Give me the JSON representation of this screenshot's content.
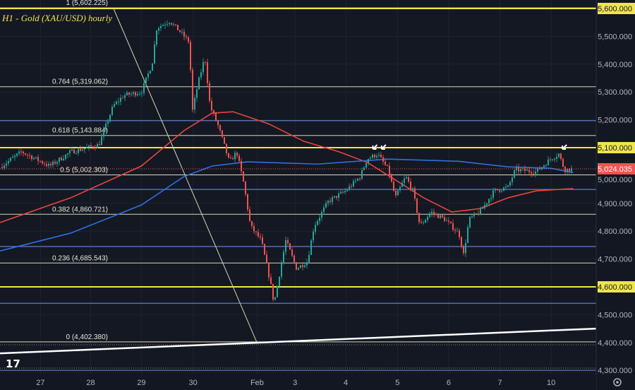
{
  "chart_data": {
    "type": "candlestick",
    "title": "H1 - Gold (XAU/USD) hourly",
    "ylim": [
      4280,
      5640
    ],
    "y_ticks": [
      5600,
      5500,
      5400,
      5300,
      5200,
      5100,
      5000,
      4900,
      4800,
      4700,
      4600,
      4500,
      4400,
      4300
    ],
    "y_tick_labels": [
      "5,600.000",
      "5,500.000",
      "5,400.000",
      "5,300.000",
      "5,200.000",
      "5,100.000",
      "5,000.000",
      "4,900.000",
      "4,800.000",
      "4,700.000",
      "4,600.000",
      "4,500.000",
      "4,400.000",
      "4,300.000"
    ],
    "x_ticks": [
      {
        "label": "27",
        "session_time": 0
      },
      {
        "label": "28",
        "session_time": 0.98
      },
      {
        "label": "29",
        "session_time": 1.97
      },
      {
        "label": "30",
        "session_time": 2.98
      },
      {
        "label": "Feb",
        "session_time": 4.23
      },
      {
        "label": "3",
        "session_time": 4.97
      },
      {
        "label": "4",
        "session_time": 5.96
      },
      {
        "label": "5",
        "session_time": 6.97
      },
      {
        "label": "6",
        "session_time": 7.97
      },
      {
        "label": "7",
        "session_time": 8.97
      },
      {
        "label": "10",
        "session_time": 9.97
      }
    ],
    "xlim": [
      -0.79,
      10.85
    ],
    "current_price": {
      "value": 5024.035,
      "label": "5,024.035",
      "color": "#f05350"
    },
    "key_levels": [
      {
        "value": 5600,
        "label": "5,600.000"
      },
      {
        "value": 5100,
        "label": "5,100.000"
      },
      {
        "value": 4600,
        "label": "4,600.000"
      }
    ],
    "key_level_color": "#f0e54a",
    "fibonacci": [
      {
        "ratio": "1",
        "value": 5602.225,
        "label": "1 (5,602.225)"
      },
      {
        "ratio": "0.764",
        "value": 5319.062,
        "label": "0.764 (5,319.062)"
      },
      {
        "ratio": "0.618",
        "value": 5143.884,
        "label": "0.618 (5,143.884)"
      },
      {
        "ratio": "0.5",
        "value": 5002.303,
        "label": "0.5 (5,002.303)"
      },
      {
        "ratio": "0.382",
        "value": 4860.721,
        "label": "0.382 (4,860.721)"
      },
      {
        "ratio": "0.236",
        "value": 4685.543,
        "label": "0.236 (4,685.543)"
      },
      {
        "ratio": "0",
        "value": 4402.38,
        "label": "0 (4,402.380)"
      }
    ],
    "fib_color": "#d8d6b0",
    "blue_levels": [
      5197,
      4950,
      4745,
      4541,
      4300
    ],
    "blue_level_color": "#5b7fc4",
    "price_path": [
      [
        -0.79,
        5030
      ],
      [
        -0.37,
        5085
      ],
      [
        0.18,
        5034
      ],
      [
        0.59,
        5085
      ],
      [
        1.14,
        5110
      ],
      [
        1.42,
        5250
      ],
      [
        1.63,
        5288
      ],
      [
        1.97,
        5300
      ],
      [
        2.18,
        5402
      ],
      [
        2.27,
        5530
      ],
      [
        2.52,
        5555
      ],
      [
        2.73,
        5516
      ],
      [
        2.91,
        5478
      ],
      [
        2.96,
        5224
      ],
      [
        3.07,
        5326
      ],
      [
        3.21,
        5427
      ],
      [
        3.31,
        5250
      ],
      [
        3.48,
        5173
      ],
      [
        3.69,
        5047
      ],
      [
        3.83,
        5085
      ],
      [
        3.97,
        4970
      ],
      [
        4.1,
        4818
      ],
      [
        4.31,
        4767
      ],
      [
        4.49,
        4615
      ],
      [
        4.56,
        4539
      ],
      [
        4.66,
        4640
      ],
      [
        4.79,
        4767
      ],
      [
        5.0,
        4666
      ],
      [
        5.21,
        4691
      ],
      [
        5.34,
        4818
      ],
      [
        5.62,
        4907
      ],
      [
        5.96,
        4945
      ],
      [
        6.24,
        4996
      ],
      [
        6.38,
        5060
      ],
      [
        6.58,
        5077
      ],
      [
        6.79,
        5021
      ],
      [
        6.93,
        4920
      ],
      [
        7.13,
        4996
      ],
      [
        7.27,
        4945
      ],
      [
        7.41,
        4818
      ],
      [
        7.62,
        4869
      ],
      [
        7.89,
        4843
      ],
      [
        8.17,
        4792
      ],
      [
        8.26,
        4716
      ],
      [
        8.37,
        4843
      ],
      [
        8.58,
        4869
      ],
      [
        8.86,
        4945
      ],
      [
        9.13,
        4958
      ],
      [
        9.27,
        5021
      ],
      [
        9.68,
        5013
      ],
      [
        9.96,
        5060
      ],
      [
        10.12,
        5077
      ],
      [
        10.23,
        5021
      ],
      [
        10.4,
        5024
      ]
    ],
    "up_color": "#26a69a",
    "down_color": "#ef5350",
    "moving_averages": [
      {
        "color": "#e8453c",
        "points": [
          [
            -0.79,
            4831
          ],
          [
            0.59,
            4920
          ],
          [
            1.97,
            5034
          ],
          [
            2.8,
            5161
          ],
          [
            3.35,
            5224
          ],
          [
            3.76,
            5229
          ],
          [
            4.45,
            5186
          ],
          [
            5.14,
            5123
          ],
          [
            5.83,
            5085
          ],
          [
            6.38,
            5047
          ],
          [
            6.93,
            4984
          ],
          [
            7.48,
            4920
          ],
          [
            8.03,
            4869
          ],
          [
            8.58,
            4881
          ],
          [
            9.13,
            4920
          ],
          [
            9.68,
            4945
          ],
          [
            10.4,
            4953
          ]
        ]
      },
      {
        "color": "#2f6fe0",
        "points": [
          [
            -0.79,
            4729
          ],
          [
            0.59,
            4793
          ],
          [
            1.97,
            4894
          ],
          [
            2.8,
            4996
          ],
          [
            3.35,
            5034
          ],
          [
            4.04,
            5049
          ],
          [
            5.41,
            5041
          ],
          [
            6.79,
            5059
          ],
          [
            8.17,
            5051
          ],
          [
            9.13,
            5031
          ],
          [
            9.96,
            5026
          ],
          [
            10.4,
            5011
          ]
        ]
      }
    ],
    "trendline": {
      "from": [
        -0.79,
        4361
      ],
      "to": [
        10.85,
        4450
      ],
      "color": "#ffffff"
    },
    "fib_anchor_line": {
      "from": [
        1.42,
        5602.225
      ],
      "to": [
        4.22,
        4402.38
      ],
      "color": "#d8d6b0"
    },
    "arrows": [
      [
        6.49,
        5095
      ],
      [
        6.66,
        5095
      ],
      [
        10.19,
        5095
      ]
    ]
  },
  "settings_icon": "gear-icon",
  "logo": "TV"
}
